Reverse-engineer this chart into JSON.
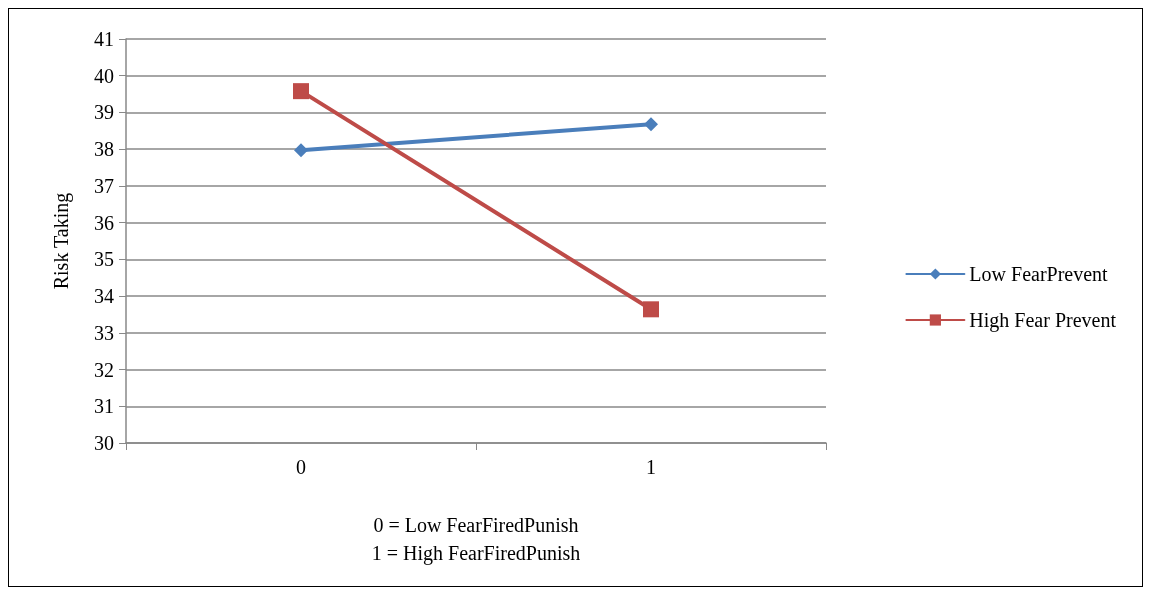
{
  "chart_data": {
    "type": "line",
    "ylabel": "Risk Taking",
    "xlabel": "0 = Low FearFiredPunish\n1 = High FearFiredPunish",
    "categories": [
      "0",
      "1"
    ],
    "series": [
      {
        "name": "Low FearPrevent",
        "color": "#4a7ebb",
        "values": [
          37.97,
          38.68
        ],
        "marker": "diamond"
      },
      {
        "name": "High Fear Prevent",
        "color": "#be4b48",
        "values": [
          39.58,
          33.64
        ],
        "marker": "square"
      }
    ],
    "ylim": [
      30,
      41
    ],
    "yticks": [
      30,
      31,
      32,
      33,
      34,
      35,
      36,
      37,
      38,
      39,
      40,
      41
    ],
    "grid": "y",
    "legend": "right",
    "line_style": "solid"
  }
}
